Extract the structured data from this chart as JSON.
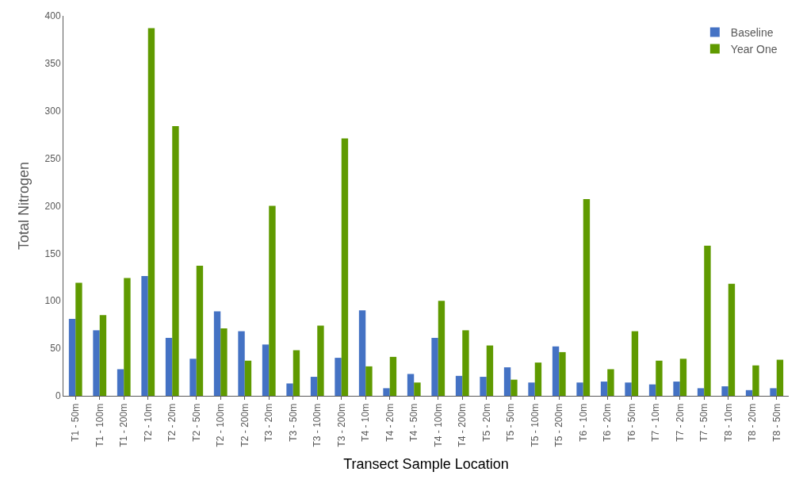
{
  "chart_data": {
    "type": "bar",
    "xlabel": "Transect Sample Location",
    "ylabel": "Total Nitrogen",
    "categories": [
      "T1 - 50m",
      "T1 - 100m",
      "T1 - 200m",
      "T2 - 10m",
      "T2 - 20m",
      "T2 - 50m",
      "T2 - 100m",
      "T2 - 200m",
      "T3 - 20m",
      "T3 - 50m",
      "T3 - 100m",
      "T3 - 200m",
      "T4 - 10m",
      "T4 - 20m",
      "T4 - 50m",
      "T4 - 100m",
      "T4 - 200m",
      "T5 - 20m",
      "T5 - 50m",
      "T5 - 100m",
      "T5 - 200m",
      "T6 - 10m",
      "T6 - 20m",
      "T6 - 50m",
      "T7 - 10m",
      "T7 - 20m",
      "T7 - 50m",
      "T8 - 10m",
      "T8 - 20m",
      "T8 - 50m"
    ],
    "series": [
      {
        "name": "Baseline",
        "color": "#4472c4",
        "values": [
          81,
          69,
          28,
          126,
          61,
          39,
          89,
          68,
          54,
          13,
          20,
          40,
          90,
          8,
          23,
          61,
          21,
          20,
          30,
          14,
          52,
          14,
          15,
          14,
          12,
          15,
          8,
          10,
          6,
          8
        ]
      },
      {
        "name": "Year One",
        "color": "#5f9a00",
        "values": [
          119,
          85,
          124,
          387,
          284,
          137,
          71,
          37,
          200,
          48,
          74,
          271,
          31,
          41,
          14,
          100,
          69,
          53,
          17,
          35,
          46,
          207,
          28,
          68,
          37,
          39,
          158,
          118,
          32,
          38
        ]
      }
    ],
    "ylim": [
      0,
      400
    ],
    "yticks": [
      0,
      50,
      100,
      150,
      200,
      250,
      300,
      350,
      400
    ],
    "legend": "top right"
  }
}
